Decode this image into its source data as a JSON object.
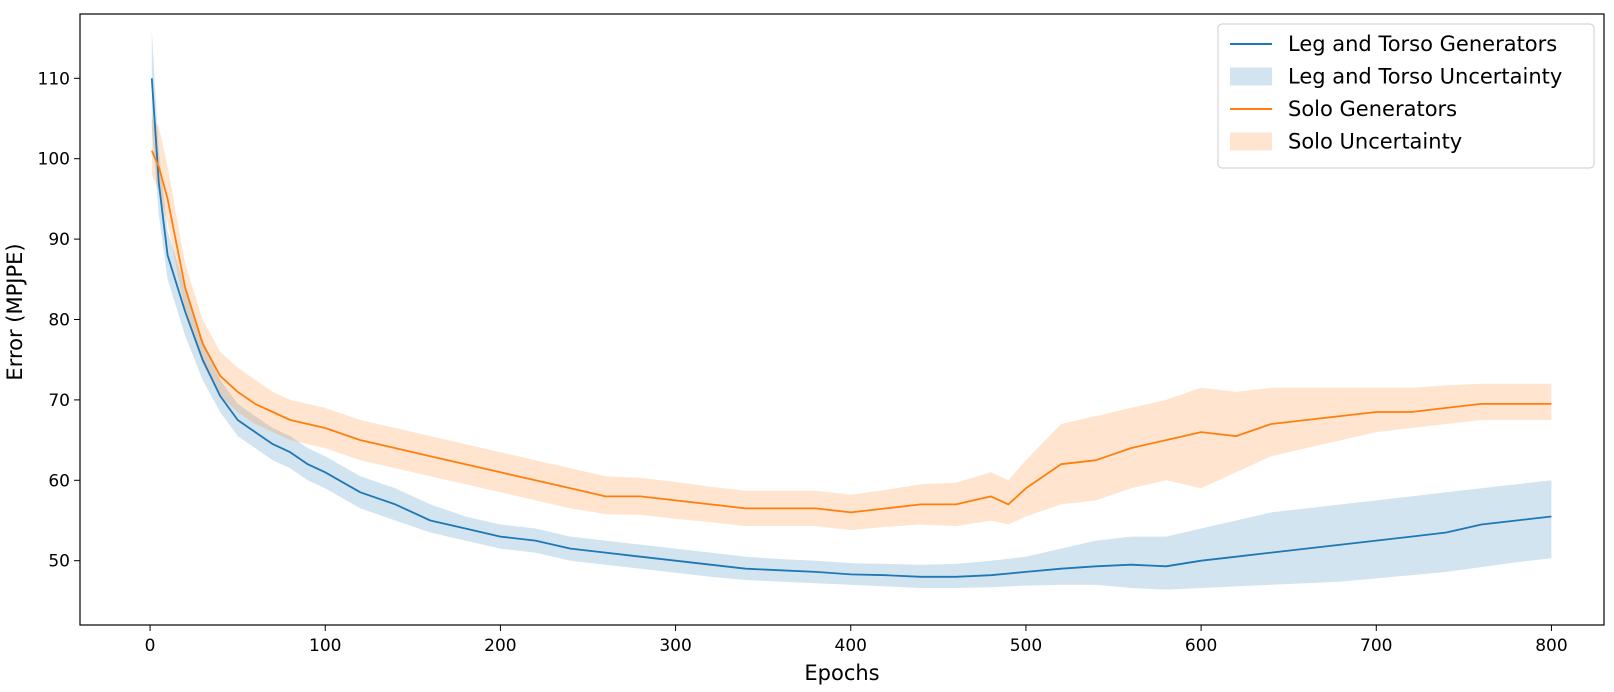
{
  "chart_data": {
    "type": "line",
    "title": "",
    "xlabel": "Epochs",
    "ylabel": "Error (MPJPE)",
    "xlim": [
      -40,
      830
    ],
    "ylim": [
      42,
      118
    ],
    "xticks": [
      0,
      100,
      200,
      300,
      400,
      500,
      600,
      700,
      800
    ],
    "yticks": [
      50,
      60,
      70,
      80,
      90,
      100,
      110
    ],
    "grid": false,
    "legend_position": "top-right",
    "series": [
      {
        "name": "Leg and Torso Generators",
        "band_name": "Leg and Torso Uncertainty",
        "color": "#1f77b4",
        "band_color": "#1f77b4",
        "x": [
          1,
          5,
          10,
          20,
          30,
          40,
          50,
          60,
          70,
          80,
          90,
          100,
          120,
          140,
          160,
          180,
          200,
          220,
          240,
          260,
          280,
          300,
          320,
          340,
          360,
          380,
          400,
          420,
          440,
          460,
          480,
          500,
          520,
          540,
          560,
          580,
          600,
          620,
          640,
          660,
          680,
          700,
          720,
          740,
          760,
          780,
          800
        ],
        "values": [
          110,
          97,
          88,
          81,
          75,
          70.5,
          67.5,
          66,
          64.5,
          63.5,
          62,
          61,
          58.5,
          57,
          55,
          54,
          53,
          52.5,
          51.5,
          51,
          50.5,
          50,
          49.5,
          49,
          48.8,
          48.6,
          48.3,
          48.2,
          48,
          48,
          48.2,
          48.6,
          49,
          49.3,
          49.5,
          49.3,
          50,
          50.5,
          51,
          51.5,
          52,
          52.5,
          53,
          53.5,
          54.5,
          55,
          55.5
        ],
        "band_low": [
          104,
          93,
          85,
          78,
          72.5,
          68.5,
          65.5,
          64,
          62.5,
          61.5,
          60,
          59,
          56.5,
          55,
          53.5,
          52.5,
          51.5,
          51,
          50,
          49.5,
          49,
          48.5,
          48,
          47.6,
          47.4,
          47.2,
          47,
          46.8,
          46.6,
          46.6,
          46.7,
          46.9,
          47,
          47,
          46.6,
          46.4,
          46.6,
          46.8,
          47,
          47.2,
          47.4,
          47.8,
          48.2,
          48.6,
          49.2,
          49.8,
          50.3
        ],
        "band_high": [
          116,
          101,
          91,
          84,
          77.5,
          72.5,
          69.5,
          68,
          66.5,
          65.5,
          64,
          63,
          60.5,
          59,
          57,
          55.5,
          54.5,
          54,
          53,
          52.5,
          52,
          51.5,
          51,
          50.5,
          50.2,
          50,
          49.7,
          49.6,
          49.5,
          49.6,
          50,
          50.5,
          51.5,
          52.5,
          53,
          53,
          54,
          55,
          56,
          56.5,
          57,
          57.5,
          58,
          58.5,
          59,
          59.5,
          60
        ]
      },
      {
        "name": "Solo Generators",
        "band_name": "Solo Uncertainty",
        "color": "#ff7f0e",
        "band_color": "#ff7f0e",
        "x": [
          1,
          5,
          10,
          20,
          30,
          40,
          50,
          60,
          70,
          80,
          90,
          100,
          120,
          140,
          160,
          180,
          200,
          220,
          240,
          260,
          280,
          300,
          320,
          340,
          360,
          380,
          400,
          420,
          440,
          460,
          480,
          490,
          500,
          520,
          540,
          560,
          580,
          600,
          620,
          640,
          660,
          680,
          700,
          720,
          740,
          760,
          780,
          800
        ],
        "values": [
          101,
          99,
          95,
          84,
          77,
          73,
          71,
          69.5,
          68.5,
          67.5,
          67,
          66.5,
          65,
          64,
          63,
          62,
          61,
          60,
          59,
          58,
          58,
          57.5,
          57,
          56.5,
          56.5,
          56.5,
          56,
          56.5,
          57,
          57,
          58,
          57,
          59,
          62,
          62.5,
          64,
          65,
          66,
          65.5,
          67,
          67.5,
          68,
          68.5,
          68.5,
          69,
          69.5,
          69.5,
          69.5
        ],
        "band_low": [
          98,
          96,
          92,
          81,
          74.5,
          70.5,
          68.5,
          67,
          66,
          65,
          64.5,
          64,
          62.5,
          61.5,
          60.5,
          59.5,
          58.5,
          57.5,
          56.5,
          55.8,
          55.7,
          55.2,
          54.8,
          54.3,
          54.3,
          54.3,
          53.8,
          54.2,
          54.5,
          54.3,
          55,
          54.5,
          55.5,
          57,
          57.5,
          59,
          60,
          59,
          61,
          63,
          64,
          65,
          66,
          66.5,
          67,
          67.5,
          67.5,
          67.5
        ],
        "band_high": [
          105,
          104,
          99,
          87,
          80,
          76,
          74,
          72.5,
          71,
          70,
          69.5,
          69,
          67.5,
          66.5,
          65.5,
          64.5,
          63.5,
          62.5,
          61.5,
          60.5,
          60.3,
          59.8,
          59.2,
          58.7,
          58.7,
          58.7,
          58.2,
          58.8,
          59.5,
          59.7,
          61,
          60,
          62.5,
          67,
          68,
          69,
          70,
          71.5,
          71,
          71.5,
          71.5,
          71.5,
          71.5,
          71.5,
          71.8,
          72,
          72,
          72
        ]
      }
    ]
  }
}
